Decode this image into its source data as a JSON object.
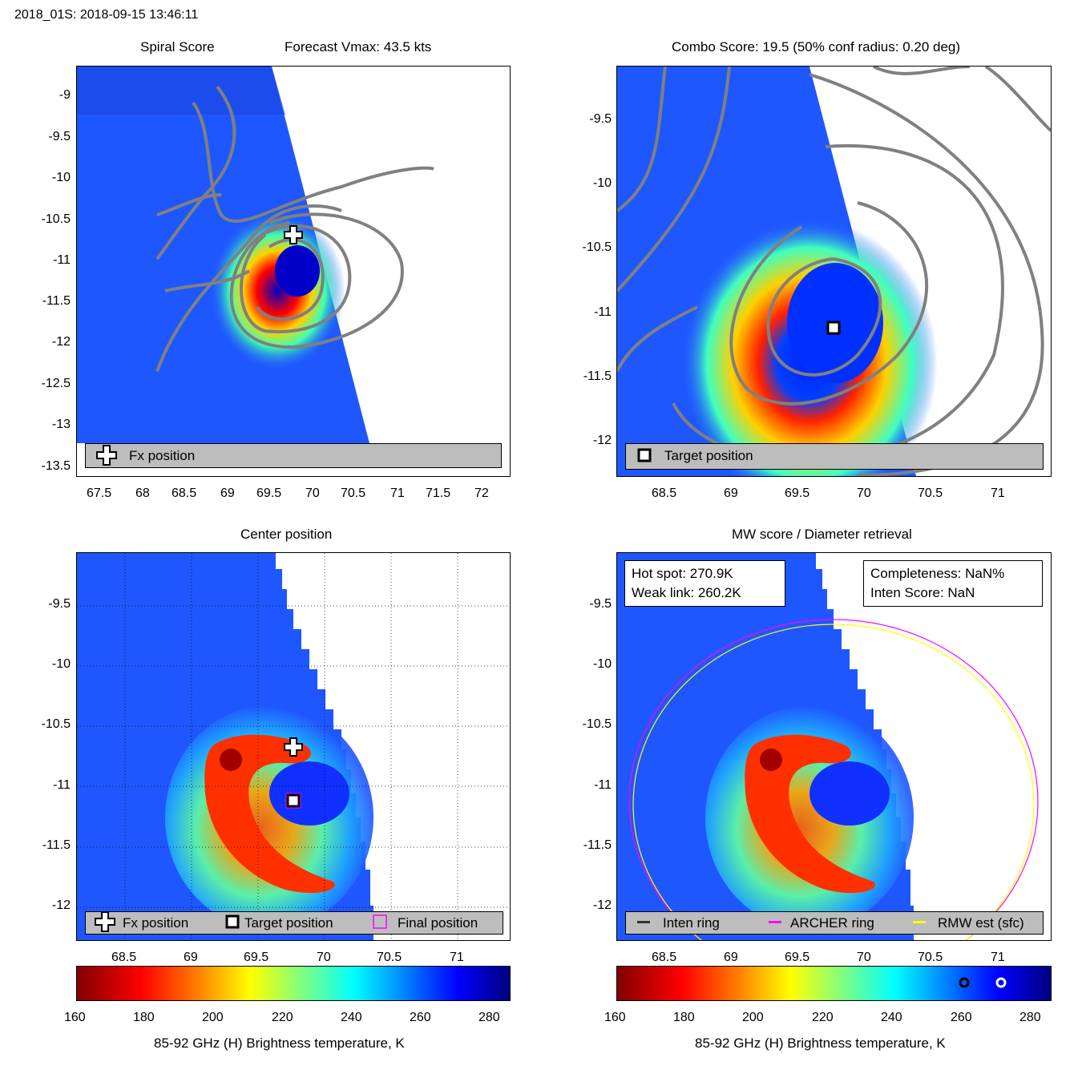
{
  "header": {
    "title": "2018_01S: 2018-09-15 13:46:11"
  },
  "colors": {
    "swath": "#1f57ff",
    "contour": "#808080",
    "legend_bg": "#bdbdbd",
    "archer_ring": "#ff00ff",
    "rmw_ring": "#ffff00",
    "inten_ring": "#333333"
  },
  "panels": {
    "spiral": {
      "title_left": "Spiral Score",
      "title_right": "Forecast Vmax: 43.5 kts",
      "yticks": [
        "-9",
        "-9.5",
        "-10",
        "-10.5",
        "-11",
        "-11.5",
        "-12",
        "-12.5",
        "-13",
        "-13.5"
      ],
      "xticks": [
        "67.5",
        "68",
        "68.5",
        "69",
        "69.5",
        "70",
        "70.5",
        "71",
        "71.5",
        "72"
      ],
      "legend": {
        "icon": "fx-position-icon",
        "label": "Fx position"
      }
    },
    "combo": {
      "title": "Combo Score: 19.5  (50% conf radius: 0.20 deg)",
      "yticks": [
        "-9.5",
        "-10",
        "-10.5",
        "-11",
        "-11.5",
        "-12"
      ],
      "xticks": [
        "68.5",
        "69",
        "69.5",
        "70",
        "70.5",
        "71"
      ],
      "legend": {
        "icon": "target-position-icon",
        "label": "Target position"
      }
    },
    "center": {
      "title": "Center position",
      "yticks": [
        "-9.5",
        "-10",
        "-10.5",
        "-11",
        "-11.5",
        "-12"
      ],
      "xticks": [
        "68.5",
        "69",
        "69.5",
        "70",
        "70.5",
        "71"
      ],
      "legend": [
        {
          "icon": "fx-position-icon",
          "label": "Fx position"
        },
        {
          "icon": "target-position-icon",
          "label": "Target position"
        },
        {
          "icon": "final-position-icon",
          "label": "Final position"
        }
      ]
    },
    "mw": {
      "title": "MW score / Diameter retrieval",
      "yticks": [
        "-9.5",
        "-10",
        "-10.5",
        "-11",
        "-11.5",
        "-12"
      ],
      "xticks": [
        "68.5",
        "69",
        "69.5",
        "70",
        "70.5",
        "71"
      ],
      "hot_spot": "Hot spot: 270.9K",
      "weak_link": "Weak link: 260.2K",
      "completeness": "Completeness: NaN%",
      "inten_score": "Inten Score: NaN",
      "legend": [
        {
          "icon": "inten-ring-icon",
          "label": "Inten ring"
        },
        {
          "icon": "archer-ring-icon",
          "label": "ARCHER ring"
        },
        {
          "icon": "rmw-ring-icon",
          "label": "RMW est (sfc)"
        }
      ]
    }
  },
  "colorbar": {
    "ticks": [
      "160",
      "180",
      "200",
      "220",
      "240",
      "260",
      "280"
    ],
    "label": "85-92 GHz (H) Brightness temperature, K",
    "markers": [
      260.2,
      270.9
    ]
  },
  "chart_data": [
    {
      "type": "heatmap",
      "title": "Spiral Score",
      "subtitle": "Forecast Vmax: 43.5 kts",
      "xlim": [
        67.2,
        72.3
      ],
      "ylim": [
        -13.6,
        -8.6
      ],
      "points": [
        {
          "name": "Fx position",
          "x": 69.75,
          "y": -10.67
        }
      ]
    },
    {
      "type": "heatmap",
      "title": "Combo Score: 19.5  (50% conf radius: 0.20 deg)",
      "xlim": [
        68.2,
        71.4
      ],
      "ylim": [
        -12.25,
        -9.2
      ],
      "points": [
        {
          "name": "Target position",
          "x": 69.75,
          "y": -11.12
        }
      ]
    },
    {
      "type": "heatmap",
      "title": "Center position",
      "xlim": [
        68.2,
        71.4
      ],
      "ylim": [
        -12.27,
        -9.2
      ],
      "grid": true,
      "points": [
        {
          "name": "Fx position",
          "x": 69.75,
          "y": -10.67
        },
        {
          "name": "Target position",
          "x": 69.75,
          "y": -11.12
        }
      ]
    },
    {
      "type": "heatmap",
      "title": "MW score / Diameter retrieval",
      "xlim": [
        68.2,
        71.4
      ],
      "ylim": [
        -12.27,
        -9.2
      ],
      "rings": [
        {
          "name": "ARCHER ring",
          "cx": 69.75,
          "cy": -11.12,
          "r": 1.5
        },
        {
          "name": "RMW est (sfc)",
          "cx": 69.75,
          "cy": -11.12,
          "r": 1.47
        }
      ],
      "hot_spot_K": 270.9,
      "weak_link_K": 260.2
    }
  ]
}
